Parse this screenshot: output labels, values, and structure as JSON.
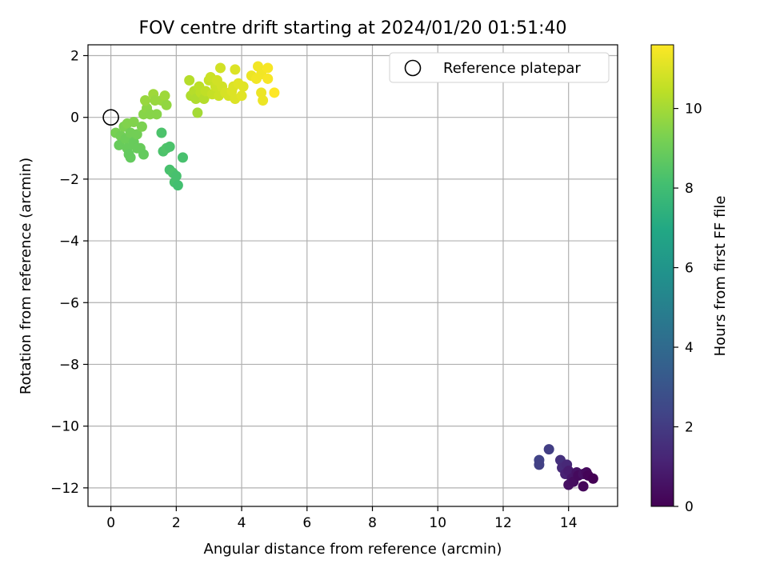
{
  "chart_data": {
    "type": "scatter",
    "title": "FOV centre drift starting at 2024/01/20 01:51:40",
    "xlabel": "Angular distance from reference (arcmin)",
    "ylabel": "Rotation from reference (arcmin)",
    "colorbar_label": "Hours from first FF file",
    "xlim": [
      -0.7,
      15.5
    ],
    "ylim": [
      -12.6,
      2.35
    ],
    "clim": [
      0,
      11.6
    ],
    "colormap": "viridis",
    "grid": true,
    "x_ticks": [
      0,
      2,
      4,
      6,
      8,
      10,
      12,
      14
    ],
    "y_ticks": [
      2,
      0,
      -2,
      -4,
      -6,
      -8,
      -10,
      -12
    ],
    "x_tick_labels": [
      "0",
      "2",
      "4",
      "6",
      "8",
      "10",
      "12",
      "14"
    ],
    "y_tick_labels": [
      "2",
      "0",
      "−2",
      "−4",
      "−6",
      "−8",
      "−10",
      "−12"
    ],
    "colorbar_ticks": [
      0,
      2,
      4,
      6,
      8,
      10
    ],
    "colorbar_tick_labels": [
      "0",
      "2",
      "4",
      "6",
      "8",
      "10"
    ],
    "legend": {
      "label": "Reference platepar",
      "position": "top-right"
    },
    "reference_point": {
      "x": 0,
      "y": 0
    },
    "points": [
      {
        "x": 13.1,
        "y": -11.1,
        "t": 2.3
      },
      {
        "x": 13.1,
        "y": -11.25,
        "t": 2.2
      },
      {
        "x": 13.4,
        "y": -10.75,
        "t": 2.1
      },
      {
        "x": 13.75,
        "y": -11.1,
        "t": 1.6
      },
      {
        "x": 13.8,
        "y": -11.35,
        "t": 1.4
      },
      {
        "x": 13.95,
        "y": -11.25,
        "t": 1.3
      },
      {
        "x": 13.9,
        "y": -11.55,
        "t": 1.1
      },
      {
        "x": 14.0,
        "y": -11.45,
        "t": 0.9
      },
      {
        "x": 14.0,
        "y": -11.9,
        "t": 0.5
      },
      {
        "x": 14.1,
        "y": -11.7,
        "t": 0.7
      },
      {
        "x": 14.15,
        "y": -11.8,
        "t": 0.4
      },
      {
        "x": 14.25,
        "y": -11.5,
        "t": 0.6
      },
      {
        "x": 14.3,
        "y": -11.6,
        "t": 0.3
      },
      {
        "x": 14.45,
        "y": -11.55,
        "t": 0.5
      },
      {
        "x": 14.45,
        "y": -11.95,
        "t": 0.2
      },
      {
        "x": 14.55,
        "y": -11.5,
        "t": 0.3
      },
      {
        "x": 14.6,
        "y": -11.6,
        "t": 0.1
      },
      {
        "x": 14.75,
        "y": -11.7,
        "t": 0.0
      },
      {
        "x": 1.55,
        "y": -0.5,
        "t": 8.3
      },
      {
        "x": 2.2,
        "y": -1.3,
        "t": 8.2
      },
      {
        "x": 1.6,
        "y": -1.1,
        "t": 8.3
      },
      {
        "x": 1.7,
        "y": -1.0,
        "t": 8.4
      },
      {
        "x": 1.8,
        "y": -0.95,
        "t": 8.3
      },
      {
        "x": 1.8,
        "y": -1.7,
        "t": 8.2
      },
      {
        "x": 1.9,
        "y": -1.8,
        "t": 8.3
      },
      {
        "x": 2.0,
        "y": -1.9,
        "t": 8.2
      },
      {
        "x": 1.95,
        "y": -2.1,
        "t": 8.2
      },
      {
        "x": 2.05,
        "y": -2.2,
        "t": 8.1
      },
      {
        "x": 0.15,
        "y": -0.5,
        "t": 9.2
      },
      {
        "x": 0.3,
        "y": -0.6,
        "t": 9.1
      },
      {
        "x": 0.25,
        "y": -0.9,
        "t": 8.9
      },
      {
        "x": 0.4,
        "y": -0.3,
        "t": 9.3
      },
      {
        "x": 0.45,
        "y": -0.7,
        "t": 9.0
      },
      {
        "x": 0.5,
        "y": -1.0,
        "t": 8.9
      },
      {
        "x": 0.55,
        "y": -1.2,
        "t": 8.8
      },
      {
        "x": 0.6,
        "y": -1.3,
        "t": 8.8
      },
      {
        "x": 0.5,
        "y": -0.2,
        "t": 9.4
      },
      {
        "x": 0.6,
        "y": -0.5,
        "t": 9.1
      },
      {
        "x": 0.7,
        "y": -0.8,
        "t": 8.9
      },
      {
        "x": 0.7,
        "y": -0.15,
        "t": 9.4
      },
      {
        "x": 0.8,
        "y": -0.55,
        "t": 9.1
      },
      {
        "x": 0.8,
        "y": -1.0,
        "t": 8.9
      },
      {
        "x": 0.9,
        "y": -1.0,
        "t": 8.9
      },
      {
        "x": 0.95,
        "y": -0.3,
        "t": 9.3
      },
      {
        "x": 1.0,
        "y": -1.2,
        "t": 8.8
      },
      {
        "x": 1.0,
        "y": 0.1,
        "t": 9.5
      },
      {
        "x": 1.1,
        "y": 0.3,
        "t": 9.6
      },
      {
        "x": 1.05,
        "y": 0.55,
        "t": 9.8
      },
      {
        "x": 1.2,
        "y": 0.1,
        "t": 9.5
      },
      {
        "x": 1.3,
        "y": 0.75,
        "t": 9.9
      },
      {
        "x": 1.35,
        "y": 0.55,
        "t": 9.8
      },
      {
        "x": 1.4,
        "y": 0.1,
        "t": 9.5
      },
      {
        "x": 1.55,
        "y": 0.55,
        "t": 9.8
      },
      {
        "x": 1.65,
        "y": 0.7,
        "t": 9.9
      },
      {
        "x": 1.7,
        "y": 0.4,
        "t": 9.7
      },
      {
        "x": 2.4,
        "y": 1.2,
        "t": 10.3
      },
      {
        "x": 2.45,
        "y": 0.7,
        "t": 10.2
      },
      {
        "x": 2.55,
        "y": 0.85,
        "t": 10.3
      },
      {
        "x": 2.6,
        "y": 0.6,
        "t": 10.2
      },
      {
        "x": 2.65,
        "y": 0.15,
        "t": 10.0
      },
      {
        "x": 2.7,
        "y": 1.0,
        "t": 10.4
      },
      {
        "x": 2.75,
        "y": 0.8,
        "t": 10.4
      },
      {
        "x": 2.85,
        "y": 0.6,
        "t": 10.3
      },
      {
        "x": 2.9,
        "y": 0.85,
        "t": 10.5
      },
      {
        "x": 3.0,
        "y": 1.2,
        "t": 10.6
      },
      {
        "x": 3.05,
        "y": 1.3,
        "t": 10.7
      },
      {
        "x": 3.1,
        "y": 0.75,
        "t": 10.6
      },
      {
        "x": 3.2,
        "y": 1.0,
        "t": 10.7
      },
      {
        "x": 3.25,
        "y": 1.2,
        "t": 10.8
      },
      {
        "x": 3.3,
        "y": 0.7,
        "t": 10.7
      },
      {
        "x": 3.35,
        "y": 1.6,
        "t": 10.8
      },
      {
        "x": 3.4,
        "y": 1.0,
        "t": 10.8
      },
      {
        "x": 3.5,
        "y": 0.8,
        "t": 10.9
      },
      {
        "x": 3.6,
        "y": 0.7,
        "t": 10.9
      },
      {
        "x": 3.7,
        "y": 0.85,
        "t": 11.0
      },
      {
        "x": 3.75,
        "y": 1.0,
        "t": 11.0
      },
      {
        "x": 3.8,
        "y": 0.6,
        "t": 11.0
      },
      {
        "x": 3.8,
        "y": 1.55,
        "t": 11.0
      },
      {
        "x": 3.9,
        "y": 1.1,
        "t": 11.1
      },
      {
        "x": 4.0,
        "y": 0.7,
        "t": 11.1
      },
      {
        "x": 4.05,
        "y": 1.0,
        "t": 11.1
      },
      {
        "x": 4.3,
        "y": 1.35,
        "t": 11.3
      },
      {
        "x": 4.45,
        "y": 1.25,
        "t": 11.4
      },
      {
        "x": 4.5,
        "y": 1.65,
        "t": 11.4
      },
      {
        "x": 4.6,
        "y": 1.4,
        "t": 11.4
      },
      {
        "x": 4.6,
        "y": 0.8,
        "t": 11.3
      },
      {
        "x": 4.65,
        "y": 0.55,
        "t": 11.3
      },
      {
        "x": 4.8,
        "y": 1.6,
        "t": 11.5
      },
      {
        "x": 4.8,
        "y": 1.25,
        "t": 11.5
      },
      {
        "x": 5.0,
        "y": 0.8,
        "t": 11.6
      }
    ]
  }
}
